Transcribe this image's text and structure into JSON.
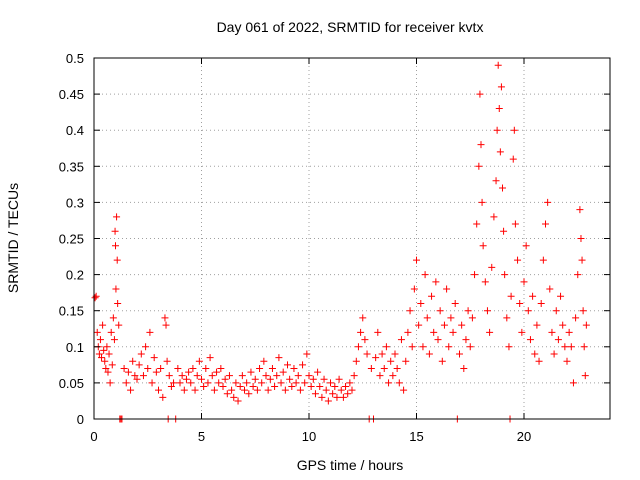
{
  "chart_data": {
    "type": "scatter",
    "title": "Day 061 of 2022, SRMTID for receiver kvtx",
    "xlabel": "GPS time / hours",
    "ylabel": "SRMTID / TECUs",
    "xlim": [
      0,
      24
    ],
    "ylim": [
      0,
      0.5
    ],
    "xticks": [
      0,
      5,
      10,
      15,
      20
    ],
    "xtick_labels": [
      "0",
      "5",
      "10",
      "15",
      "20"
    ],
    "yticks": [
      0,
      0.05,
      0.1,
      0.15,
      0.2,
      0.25,
      0.3,
      0.35,
      0.4,
      0.45,
      0.5
    ],
    "ytick_labels": [
      "0",
      "0.05",
      "0.1",
      "0.15",
      "0.2",
      "0.25",
      "0.3",
      "0.35",
      "0.4",
      "0.45",
      "0.5"
    ],
    "grid": true,
    "marker": "plus",
    "color": "#ff0000",
    "series": [
      {
        "name": "SRMTID",
        "points": [
          [
            0.05,
            0.168
          ],
          [
            0.1,
            0.17
          ],
          [
            0.15,
            0.12
          ],
          [
            0.2,
            0.1
          ],
          [
            0.25,
            0.09
          ],
          [
            0.3,
            0.11
          ],
          [
            0.35,
            0.085
          ],
          [
            0.4,
            0.13
          ],
          [
            0.45,
            0.095
          ],
          [
            0.5,
            0.08
          ],
          [
            0.55,
            0.07
          ],
          [
            0.6,
            0.1
          ],
          [
            0.65,
            0.065
          ],
          [
            0.7,
            0.09
          ],
          [
            0.75,
            0.05
          ],
          [
            0.8,
            0.12
          ],
          [
            0.85,
            0.075
          ],
          [
            0.9,
            0.14
          ],
          [
            0.95,
            0.11
          ],
          [
            0.98,
            0.26
          ],
          [
            1.0,
            0.24
          ],
          [
            1.02,
            0.18
          ],
          [
            1.05,
            0.28
          ],
          [
            1.08,
            0.22
          ],
          [
            1.1,
            0.16
          ],
          [
            1.15,
            0.13
          ],
          [
            1.2,
            0.0
          ],
          [
            1.25,
            0.0
          ],
          [
            1.3,
            0.0
          ],
          [
            1.4,
            0.07
          ],
          [
            1.5,
            0.05
          ],
          [
            1.6,
            0.065
          ],
          [
            1.7,
            0.04
          ],
          [
            1.8,
            0.08
          ],
          [
            1.9,
            0.06
          ],
          [
            2.0,
            0.055
          ],
          [
            2.1,
            0.075
          ],
          [
            2.2,
            0.09
          ],
          [
            2.3,
            0.06
          ],
          [
            2.4,
            0.1
          ],
          [
            2.5,
            0.07
          ],
          [
            2.6,
            0.12
          ],
          [
            2.7,
            0.05
          ],
          [
            2.8,
            0.085
          ],
          [
            2.9,
            0.065
          ],
          [
            3.0,
            0.04
          ],
          [
            3.1,
            0.07
          ],
          [
            3.2,
            0.03
          ],
          [
            3.3,
            0.14
          ],
          [
            3.35,
            0.13
          ],
          [
            3.4,
            0.08
          ],
          [
            3.45,
            0.0
          ],
          [
            3.5,
            0.06
          ],
          [
            3.6,
            0.045
          ],
          [
            3.7,
            0.05
          ],
          [
            3.8,
            0.0
          ],
          [
            3.9,
            0.07
          ],
          [
            4.0,
            0.05
          ],
          [
            4.1,
            0.06
          ],
          [
            4.2,
            0.04
          ],
          [
            4.3,
            0.055
          ],
          [
            4.4,
            0.065
          ],
          [
            4.5,
            0.05
          ],
          [
            4.6,
            0.07
          ],
          [
            4.7,
            0.04
          ],
          [
            4.8,
            0.06
          ],
          [
            4.9,
            0.08
          ],
          [
            5.0,
            0.055
          ],
          [
            5.1,
            0.045
          ],
          [
            5.2,
            0.07
          ],
          [
            5.3,
            0.05
          ],
          [
            5.4,
            0.085
          ],
          [
            5.5,
            0.06
          ],
          [
            5.6,
            0.04
          ],
          [
            5.7,
            0.065
          ],
          [
            5.8,
            0.05
          ],
          [
            5.9,
            0.07
          ],
          [
            6.0,
            0.045
          ],
          [
            6.1,
            0.055
          ],
          [
            6.2,
            0.035
          ],
          [
            6.3,
            0.06
          ],
          [
            6.4,
            0.04
          ],
          [
            6.5,
            0.03
          ],
          [
            6.6,
            0.05
          ],
          [
            6.7,
            0.025
          ],
          [
            6.8,
            0.045
          ],
          [
            6.9,
            0.06
          ],
          [
            7.0,
            0.04
          ],
          [
            7.1,
            0.05
          ],
          [
            7.2,
            0.035
          ],
          [
            7.3,
            0.065
          ],
          [
            7.4,
            0.045
          ],
          [
            7.5,
            0.055
          ],
          [
            7.6,
            0.04
          ],
          [
            7.7,
            0.07
          ],
          [
            7.8,
            0.05
          ],
          [
            7.9,
            0.08
          ],
          [
            8.0,
            0.06
          ],
          [
            8.1,
            0.04
          ],
          [
            8.2,
            0.055
          ],
          [
            8.3,
            0.07
          ],
          [
            8.4,
            0.045
          ],
          [
            8.5,
            0.06
          ],
          [
            8.6,
            0.085
          ],
          [
            8.7,
            0.05
          ],
          [
            8.8,
            0.065
          ],
          [
            8.9,
            0.04
          ],
          [
            9.0,
            0.075
          ],
          [
            9.1,
            0.055
          ],
          [
            9.2,
            0.045
          ],
          [
            9.3,
            0.07
          ],
          [
            9.4,
            0.05
          ],
          [
            9.5,
            0.06
          ],
          [
            9.6,
            0.04
          ],
          [
            9.7,
            0.075
          ],
          [
            9.8,
            0.05
          ],
          [
            9.9,
            0.09
          ],
          [
            10.0,
            0.06
          ],
          [
            10.1,
            0.045
          ],
          [
            10.2,
            0.055
          ],
          [
            10.3,
            0.035
          ],
          [
            10.4,
            0.065
          ],
          [
            10.5,
            0.045
          ],
          [
            10.6,
            0.03
          ],
          [
            10.7,
            0.055
          ],
          [
            10.8,
            0.04
          ],
          [
            10.9,
            0.025
          ],
          [
            11.0,
            0.05
          ],
          [
            11.1,
            0.035
          ],
          [
            11.2,
            0.045
          ],
          [
            11.3,
            0.03
          ],
          [
            11.4,
            0.055
          ],
          [
            11.5,
            0.04
          ],
          [
            11.6,
            0.03
          ],
          [
            11.7,
            0.045
          ],
          [
            11.8,
            0.035
          ],
          [
            11.9,
            0.05
          ],
          [
            12.0,
            0.04
          ],
          [
            12.1,
            0.06
          ],
          [
            12.2,
            0.08
          ],
          [
            12.3,
            0.1
          ],
          [
            12.4,
            0.12
          ],
          [
            12.5,
            0.14
          ],
          [
            12.6,
            0.11
          ],
          [
            12.7,
            0.09
          ],
          [
            12.8,
            0.0
          ],
          [
            12.9,
            0.07
          ],
          [
            13.0,
            0.0
          ],
          [
            13.1,
            0.085
          ],
          [
            13.2,
            0.12
          ],
          [
            13.3,
            0.06
          ],
          [
            13.4,
            0.09
          ],
          [
            13.5,
            0.07
          ],
          [
            13.6,
            0.1
          ],
          [
            13.7,
            0.05
          ],
          [
            13.8,
            0.08
          ],
          [
            13.9,
            0.06
          ],
          [
            14.0,
            0.09
          ],
          [
            14.1,
            0.07
          ],
          [
            14.2,
            0.05
          ],
          [
            14.3,
            0.11
          ],
          [
            14.4,
            0.04
          ],
          [
            14.5,
            0.08
          ],
          [
            14.6,
            0.12
          ],
          [
            14.7,
            0.15
          ],
          [
            14.8,
            0.1
          ],
          [
            14.9,
            0.18
          ],
          [
            15.0,
            0.22
          ],
          [
            15.1,
            0.13
          ],
          [
            15.2,
            0.16
          ],
          [
            15.3,
            0.1
          ],
          [
            15.4,
            0.2
          ],
          [
            15.5,
            0.14
          ],
          [
            15.6,
            0.09
          ],
          [
            15.7,
            0.17
          ],
          [
            15.8,
            0.12
          ],
          [
            15.9,
            0.19
          ],
          [
            16.0,
            0.11
          ],
          [
            16.1,
            0.15
          ],
          [
            16.2,
            0.08
          ],
          [
            16.3,
            0.13
          ],
          [
            16.4,
            0.18
          ],
          [
            16.5,
            0.1
          ],
          [
            16.6,
            0.14
          ],
          [
            16.7,
            0.12
          ],
          [
            16.8,
            0.16
          ],
          [
            16.9,
            0.0
          ],
          [
            17.0,
            0.09
          ],
          [
            17.1,
            0.13
          ],
          [
            17.2,
            0.07
          ],
          [
            17.3,
            0.11
          ],
          [
            17.4,
            0.15
          ],
          [
            17.5,
            0.1
          ],
          [
            17.6,
            0.14
          ],
          [
            17.7,
            0.2
          ],
          [
            17.8,
            0.27
          ],
          [
            17.9,
            0.35
          ],
          [
            17.95,
            0.45
          ],
          [
            18.0,
            0.38
          ],
          [
            18.05,
            0.3
          ],
          [
            18.1,
            0.24
          ],
          [
            18.2,
            0.19
          ],
          [
            18.3,
            0.15
          ],
          [
            18.4,
            0.12
          ],
          [
            18.5,
            0.21
          ],
          [
            18.6,
            0.28
          ],
          [
            18.7,
            0.33
          ],
          [
            18.75,
            0.4
          ],
          [
            18.8,
            0.49
          ],
          [
            18.85,
            0.43
          ],
          [
            18.9,
            0.37
          ],
          [
            18.95,
            0.46
          ],
          [
            19.0,
            0.32
          ],
          [
            19.05,
            0.26
          ],
          [
            19.1,
            0.2
          ],
          [
            19.2,
            0.14
          ],
          [
            19.3,
            0.1
          ],
          [
            19.35,
            0.0
          ],
          [
            19.4,
            0.17
          ],
          [
            19.5,
            0.36
          ],
          [
            19.55,
            0.4
          ],
          [
            19.6,
            0.27
          ],
          [
            19.7,
            0.22
          ],
          [
            19.8,
            0.16
          ],
          [
            19.9,
            0.12
          ],
          [
            20.0,
            0.19
          ],
          [
            20.1,
            0.24
          ],
          [
            20.2,
            0.15
          ],
          [
            20.3,
            0.11
          ],
          [
            20.4,
            0.17
          ],
          [
            20.5,
            0.09
          ],
          [
            20.6,
            0.13
          ],
          [
            20.7,
            0.08
          ],
          [
            20.8,
            0.16
          ],
          [
            20.9,
            0.22
          ],
          [
            21.0,
            0.27
          ],
          [
            21.1,
            0.3
          ],
          [
            21.2,
            0.18
          ],
          [
            21.3,
            0.12
          ],
          [
            21.4,
            0.09
          ],
          [
            21.5,
            0.15
          ],
          [
            21.6,
            0.11
          ],
          [
            21.7,
            0.17
          ],
          [
            21.8,
            0.13
          ],
          [
            21.9,
            0.1
          ],
          [
            22.0,
            0.08
          ],
          [
            22.1,
            0.12
          ],
          [
            22.2,
            0.1
          ],
          [
            22.3,
            0.05
          ],
          [
            22.4,
            0.14
          ],
          [
            22.5,
            0.2
          ],
          [
            22.6,
            0.29
          ],
          [
            22.65,
            0.25
          ],
          [
            22.7,
            0.22
          ],
          [
            22.75,
            0.15
          ],
          [
            22.8,
            0.1
          ],
          [
            22.85,
            0.06
          ],
          [
            22.9,
            0.13
          ]
        ]
      }
    ]
  }
}
